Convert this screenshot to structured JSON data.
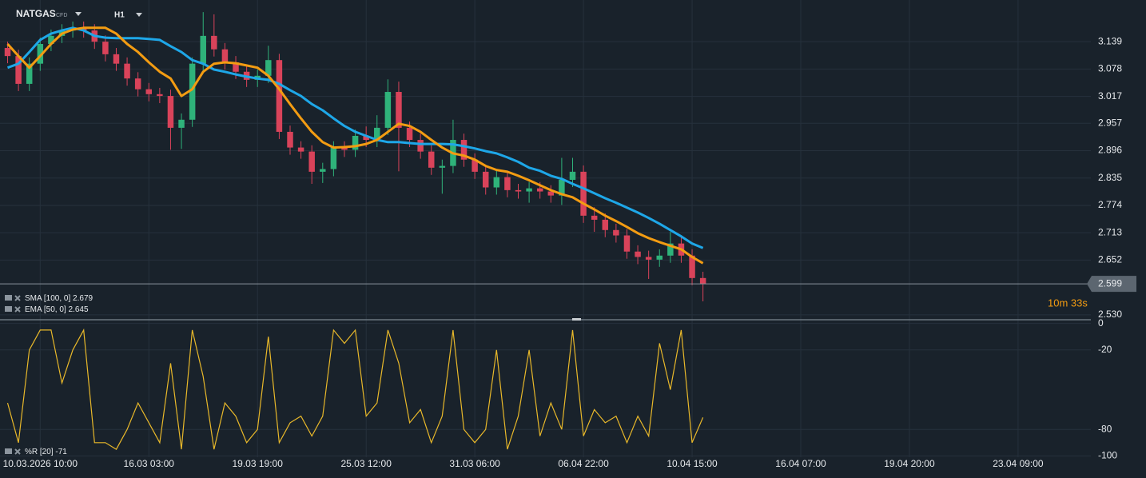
{
  "header": {
    "symbol": "NATGAS",
    "instrument_type": "CFD",
    "timeframe": "H1"
  },
  "chart_data": [
    {
      "type": "candlestick",
      "up_color": "#2fb27a",
      "down_color": "#d9435a",
      "x": [
        0,
        1,
        2,
        3,
        4,
        5,
        6,
        7,
        8,
        9,
        10,
        11,
        12,
        13,
        14,
        15,
        16,
        17,
        18,
        19,
        20,
        21,
        22,
        23,
        24,
        25,
        26,
        27,
        28,
        29,
        30,
        31,
        32,
        33,
        34,
        35,
        36,
        37,
        38,
        39,
        40,
        41,
        42,
        43,
        44,
        45,
        46,
        47,
        48,
        49,
        50,
        51,
        52,
        53,
        54,
        55,
        56,
        57,
        58,
        59,
        60,
        61,
        62,
        63,
        64
      ],
      "open": [
        3.125,
        3.107,
        3.045,
        3.09,
        3.134,
        3.152,
        3.164,
        3.17,
        3.164,
        3.139,
        3.111,
        3.09,
        3.057,
        3.033,
        3.022,
        3.018,
        2.947,
        2.965,
        3.09,
        3.152,
        3.122,
        3.093,
        3.072,
        3.054,
        3.063,
        3.098,
        2.938,
        2.903,
        2.894,
        2.849,
        2.855,
        2.903,
        2.898,
        2.929,
        2.92,
        2.947,
        3.027,
        2.947,
        2.92,
        2.894,
        2.858,
        2.862,
        2.92,
        2.876,
        2.849,
        2.814,
        2.837,
        2.808,
        2.805,
        2.812,
        2.805,
        2.796,
        2.831,
        2.849,
        2.751,
        2.742,
        2.719,
        2.707,
        2.671,
        2.659,
        2.653,
        2.662,
        2.689,
        2.662,
        2.612
      ],
      "high": [
        3.139,
        3.121,
        3.104,
        3.148,
        3.166,
        3.178,
        3.184,
        3.184,
        3.178,
        3.153,
        3.125,
        3.104,
        3.071,
        3.047,
        3.036,
        3.032,
        2.979,
        3.104,
        3.205,
        3.2,
        3.136,
        3.107,
        3.086,
        3.077,
        3.13,
        3.112,
        2.952,
        2.917,
        2.908,
        2.869,
        2.917,
        2.917,
        2.943,
        2.95,
        2.975,
        3.055,
        3.05,
        2.961,
        2.934,
        2.908,
        2.876,
        2.965,
        2.934,
        2.89,
        2.863,
        2.851,
        2.851,
        2.822,
        2.826,
        2.826,
        2.819,
        2.88,
        2.88,
        2.863,
        2.77,
        2.756,
        2.733,
        2.721,
        2.685,
        2.673,
        2.676,
        2.715,
        2.703,
        2.676,
        2.626
      ],
      "low": [
        3.091,
        3.029,
        3.029,
        3.074,
        3.118,
        3.136,
        3.148,
        3.148,
        3.123,
        3.095,
        3.074,
        3.041,
        3.017,
        3.006,
        3.002,
        2.898,
        2.9,
        2.949,
        3.074,
        3.106,
        3.077,
        3.056,
        3.038,
        3.038,
        3.047,
        2.922,
        2.887,
        2.878,
        2.822,
        2.824,
        2.839,
        2.882,
        2.882,
        2.904,
        2.904,
        2.931,
        2.85,
        2.904,
        2.878,
        2.842,
        2.8,
        2.846,
        2.86,
        2.833,
        2.798,
        2.798,
        2.792,
        2.789,
        2.78,
        2.789,
        2.78,
        2.775,
        2.815,
        2.735,
        2.715,
        2.703,
        2.691,
        2.655,
        2.643,
        2.61,
        2.637,
        2.646,
        2.646,
        2.596,
        2.56
      ],
      "close": [
        3.107,
        3.045,
        3.09,
        3.134,
        3.152,
        3.164,
        3.17,
        3.164,
        3.139,
        3.111,
        3.09,
        3.057,
        3.033,
        3.022,
        3.018,
        2.947,
        2.965,
        3.09,
        3.152,
        3.122,
        3.093,
        3.072,
        3.054,
        3.063,
        3.098,
        2.938,
        2.903,
        2.894,
        2.849,
        2.855,
        2.903,
        2.898,
        2.929,
        2.92,
        2.947,
        3.027,
        2.947,
        2.92,
        2.894,
        2.858,
        2.862,
        2.92,
        2.876,
        2.849,
        2.814,
        2.837,
        2.808,
        2.805,
        2.812,
        2.805,
        2.796,
        2.831,
        2.849,
        2.751,
        2.742,
        2.719,
        2.707,
        2.671,
        2.659,
        2.653,
        2.662,
        2.689,
        2.662,
        2.612,
        2.599
      ],
      "series": [
        {
          "name": "SMA [100, 0]",
          "color": "#1ea7e8",
          "values": [
            3.081,
            3.09,
            3.116,
            3.143,
            3.157,
            3.164,
            3.17,
            3.164,
            3.152,
            3.148,
            3.147,
            3.147,
            3.147,
            3.145,
            3.143,
            3.129,
            3.116,
            3.098,
            3.09,
            3.077,
            3.072,
            3.066,
            3.061,
            3.057,
            3.054,
            3.045,
            3.031,
            3.018,
            3.0,
            2.986,
            2.968,
            2.951,
            2.938,
            2.929,
            2.92,
            2.915,
            2.915,
            2.913,
            2.911,
            2.911,
            2.911,
            2.91,
            2.906,
            2.901,
            2.895,
            2.89,
            2.881,
            2.871,
            2.858,
            2.851,
            2.84,
            2.833,
            2.822,
            2.812,
            2.801,
            2.79,
            2.78,
            2.769,
            2.758,
            2.746,
            2.733,
            2.719,
            2.705,
            2.689,
            2.679
          ]
        },
        {
          "name": "EMA [50, 0]",
          "color": "#f39c12",
          "values": [
            3.134,
            3.107,
            3.081,
            3.107,
            3.134,
            3.157,
            3.166,
            3.17,
            3.17,
            3.17,
            3.157,
            3.134,
            3.116,
            3.093,
            3.072,
            3.057,
            3.018,
            3.033,
            3.072,
            3.09,
            3.093,
            3.091,
            3.086,
            3.081,
            3.063,
            3.033,
            3.0,
            2.968,
            2.938,
            2.915,
            2.903,
            2.904,
            2.906,
            2.911,
            2.92,
            2.938,
            2.956,
            2.951,
            2.938,
            2.92,
            2.903,
            2.89,
            2.885,
            2.876,
            2.862,
            2.853,
            2.849,
            2.84,
            2.83,
            2.819,
            2.808,
            2.799,
            2.792,
            2.778,
            2.765,
            2.751,
            2.739,
            2.726,
            2.712,
            2.701,
            2.692,
            2.684,
            2.676,
            2.659,
            2.645
          ]
        }
      ],
      "xlim": [
        -0.7,
        99.7
      ],
      "xticks": [
        {
          "value": 3,
          "label": "10.03.2026 10:00"
        },
        {
          "value": 13,
          "label": "16.03 03:00"
        },
        {
          "value": 23,
          "label": "19.03 19:00"
        },
        {
          "value": 33,
          "label": "25.03 12:00"
        },
        {
          "value": 43,
          "label": "31.03 06:00"
        },
        {
          "value": 53,
          "label": "06.04 22:00"
        },
        {
          "value": 63,
          "label": "10.04 15:00"
        },
        {
          "value": 73,
          "label": "16.04 07:00"
        },
        {
          "value": 83,
          "label": "19.04 20:00"
        },
        {
          "value": 93,
          "label": "23.04 09:00"
        }
      ],
      "ylim": [
        2.519,
        3.232
      ],
      "yticks": [
        3.139,
        3.078,
        3.017,
        2.957,
        2.896,
        2.835,
        2.774,
        2.713,
        2.652,
        {
          "value": 2.53,
          "label": "2.530"
        }
      ],
      "grid": true,
      "countdown": "10m 33s"
    },
    {
      "type": "line",
      "series": [
        {
          "name": "%R [20]",
          "color": "#e8b82a",
          "values": [
            -60,
            -90,
            -20,
            -5,
            -5,
            -45,
            -20,
            -5,
            -90,
            -90,
            -95,
            -80,
            -60,
            -75,
            -90,
            -30,
            -95,
            -5,
            -40,
            -95,
            -60,
            -70,
            -90,
            -80,
            -10,
            -90,
            -75,
            -70,
            -85,
            -70,
            -5,
            -15,
            -5,
            -70,
            -60,
            -5,
            -30,
            -75,
            -65,
            -90,
            -70,
            -5,
            -80,
            -90,
            -80,
            -20,
            -95,
            -70,
            -20,
            -85,
            -60,
            -80,
            -5,
            -85,
            -65,
            -75,
            -70,
            -90,
            -70,
            -85,
            -15,
            -50,
            -5,
            -90,
            -71
          ]
        }
      ],
      "ylim": [
        -101,
        1
      ],
      "yticks": [
        0,
        -20,
        -80,
        -100
      ],
      "grid": true
    }
  ]
}
